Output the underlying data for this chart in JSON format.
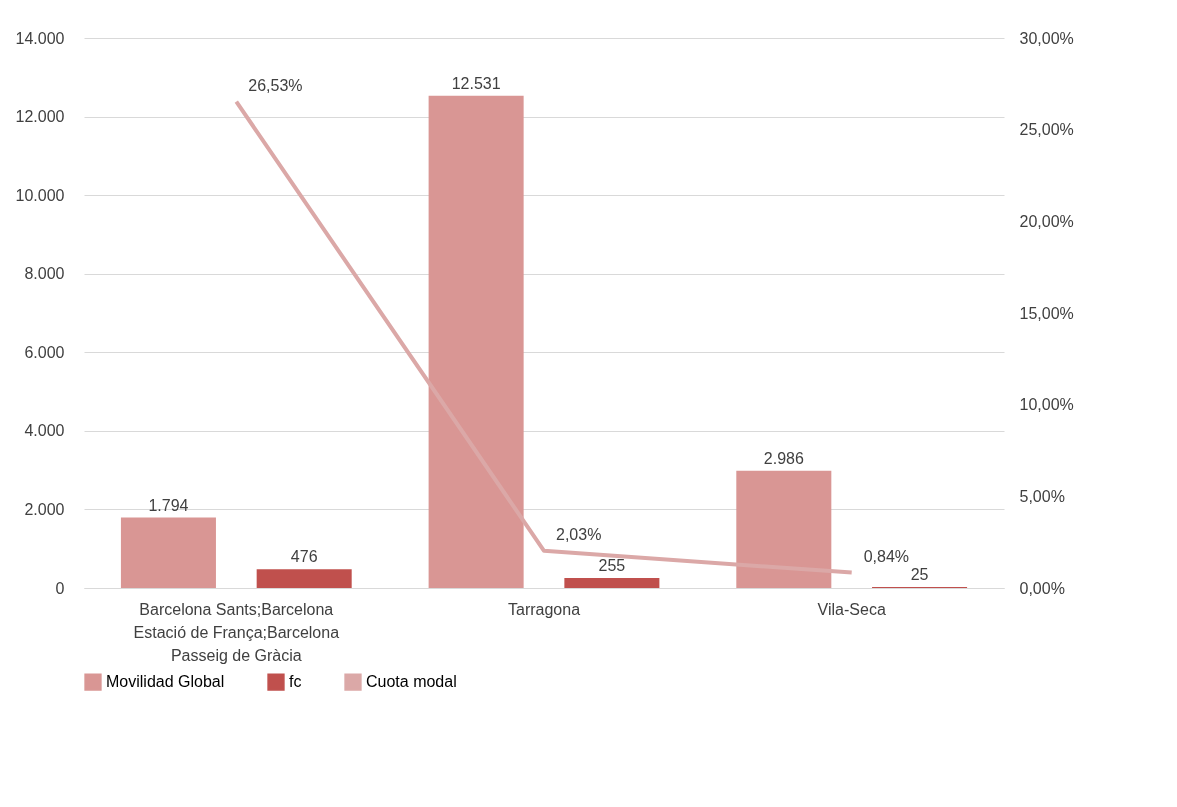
{
  "chart_data": {
    "type": "bar",
    "categories": [
      "Barcelona Sants;Barcelona Estació de França;Barcelona Passeig de Gràcia",
      "Tarragona",
      "Vila-Seca"
    ],
    "series": [
      {
        "name": "Movilidad Global",
        "color": "#d99694",
        "values": [
          1794,
          12531,
          2986
        ],
        "value_labels": [
          "1.794",
          "12.531",
          "2.986"
        ]
      },
      {
        "name": "fc",
        "color": "#c0504d",
        "values": [
          476,
          255,
          25
        ],
        "value_labels": [
          "476",
          "255",
          "25"
        ]
      },
      {
        "name": "Cuota modal",
        "type": "line",
        "axis": "y2",
        "color": "#dba8a7",
        "values": [
          26.53,
          2.03,
          0.84
        ],
        "value_labels": [
          "26,53%",
          "2,03%",
          "0,84%"
        ]
      }
    ],
    "ylim": [
      0,
      14000
    ],
    "yticks": [
      {
        "value": 0,
        "label": "0"
      },
      {
        "value": 2000,
        "label": "2.000"
      },
      {
        "value": 4000,
        "label": "4.000"
      },
      {
        "value": 6000,
        "label": "6.000"
      },
      {
        "value": 8000,
        "label": "8.000"
      },
      {
        "value": 10000,
        "label": "10.000"
      },
      {
        "value": 12000,
        "label": "12.000"
      },
      {
        "value": 14000,
        "label": "14.000"
      }
    ],
    "y2lim": [
      0,
      30
    ],
    "y2ticks": [
      {
        "value": 0,
        "label": "0,00%"
      },
      {
        "value": 5,
        "label": "5,00%"
      },
      {
        "value": 10,
        "label": "10,00%"
      },
      {
        "value": 15,
        "label": "15,00%"
      },
      {
        "value": 20,
        "label": "20,00%"
      },
      {
        "value": 25,
        "label": "25,00%"
      },
      {
        "value": 30,
        "label": "30,00%"
      }
    ],
    "grid": "y",
    "legend": "bottom",
    "marker": "none",
    "line_style": "solid"
  }
}
